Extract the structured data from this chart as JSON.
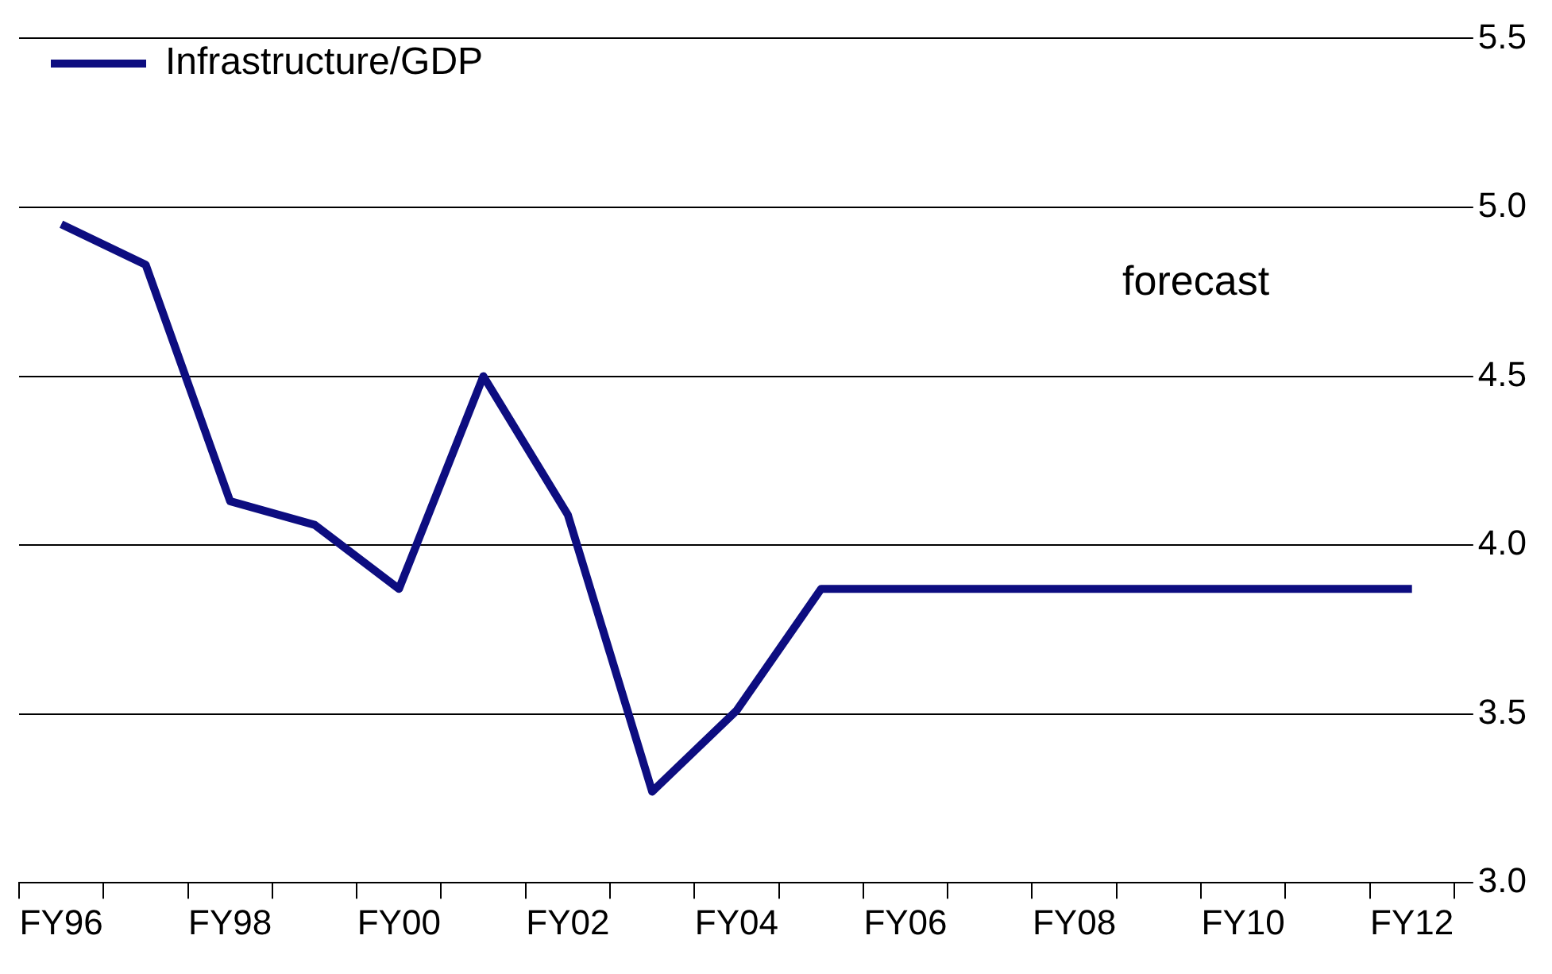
{
  "chart_data": {
    "type": "line",
    "categories": [
      "FY96",
      null,
      "FY98",
      null,
      "FY00",
      null,
      "FY02",
      null,
      "FY04",
      null,
      "FY06",
      null,
      "FY08",
      null,
      "FY10",
      null,
      "FY12"
    ],
    "series": [
      {
        "name": "Infrastructure/GDP",
        "color": "#0d0d80",
        "values": [
          4.95,
          4.83,
          4.13,
          4.06,
          3.87,
          4.5,
          4.09,
          3.27,
          3.51,
          3.87,
          3.87,
          3.87,
          3.87,
          3.87,
          3.87,
          3.87,
          3.87
        ]
      }
    ],
    "ylim": [
      3.0,
      5.5
    ],
    "yticks": [
      {
        "value": 3,
        "label": "3.0"
      },
      3.5,
      {
        "value": 4,
        "label": "4.0"
      },
      4.5,
      {
        "value": 5,
        "label": "5.0"
      },
      5.5
    ],
    "grid": "y",
    "legend": "top left",
    "marker": "none",
    "line_style": "solid",
    "annotations": [
      "forecast"
    ]
  }
}
